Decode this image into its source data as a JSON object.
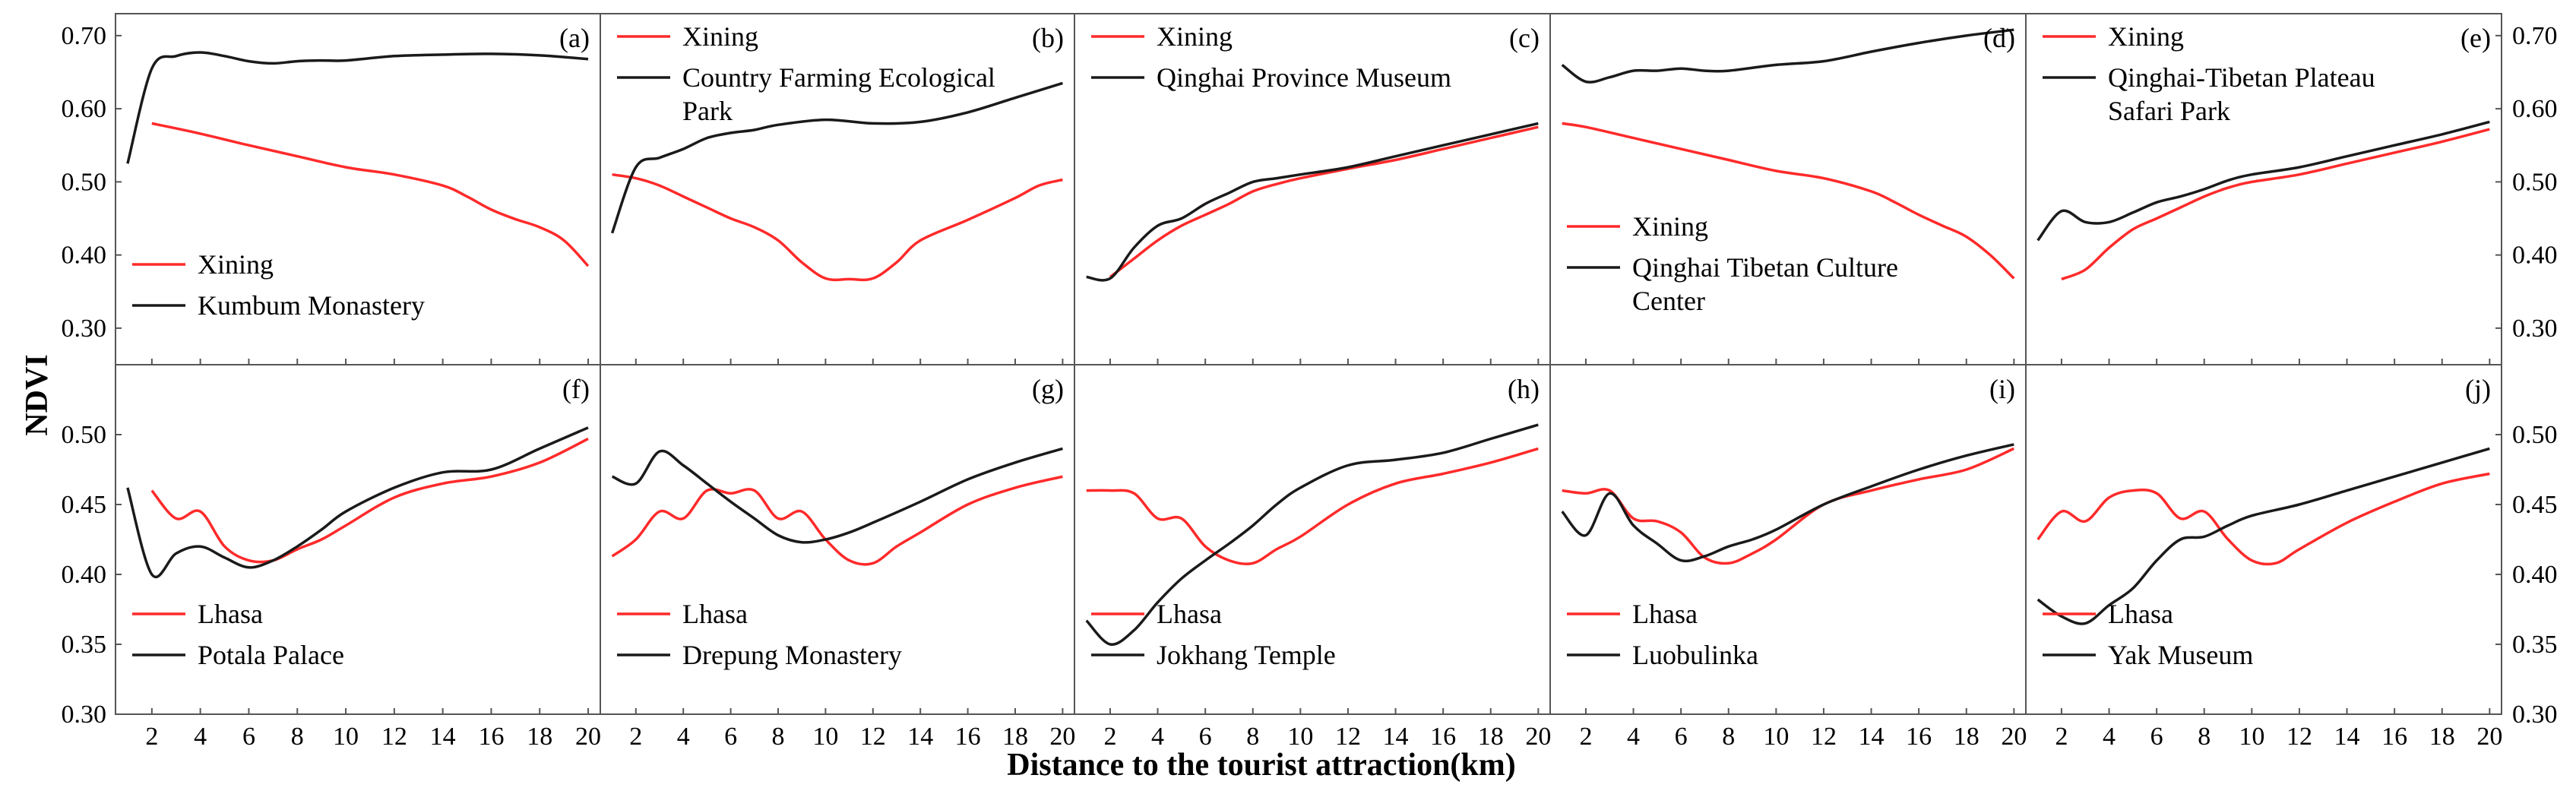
{
  "figure": {
    "ylabel": "NDVI",
    "xlabel": "Distance to the tourist attraction(km)",
    "x_ticks": [
      2,
      4,
      6,
      8,
      10,
      12,
      14,
      16,
      18,
      20
    ],
    "top_row_y_ticks": [
      "0.30",
      "0.40",
      "0.50",
      "0.60",
      "0.70"
    ],
    "bottom_row_y_ticks": [
      "0.30",
      "0.35",
      "0.40",
      "0.45",
      "0.50"
    ],
    "colors": {
      "city": "#ff2a2a",
      "attraction": "#1a1a1a"
    }
  },
  "chart_data": [
    {
      "type": "line",
      "label": "(a)",
      "row": 0,
      "legend_position": "bottom-left",
      "xlim": [
        0.5,
        20.5
      ],
      "ylim": [
        0.25,
        0.73
      ],
      "series": [
        {
          "name": "Xining",
          "color": "red",
          "x": [
            2,
            4,
            6,
            8,
            10,
            12,
            14,
            15,
            16,
            17,
            18,
            19,
            20
          ],
          "y": [
            0.58,
            0.566,
            0.55,
            0.535,
            0.52,
            0.51,
            0.495,
            0.48,
            0.462,
            0.449,
            0.438,
            0.42,
            0.385
          ]
        },
        {
          "name": "Kumbum Monastery",
          "color": "black",
          "x": [
            1,
            2,
            3,
            4,
            5,
            6,
            7,
            8,
            9,
            10,
            12,
            14,
            16,
            18,
            20
          ],
          "y": [
            0.525,
            0.655,
            0.672,
            0.677,
            0.672,
            0.665,
            0.662,
            0.665,
            0.666,
            0.666,
            0.672,
            0.674,
            0.675,
            0.673,
            0.668
          ]
        }
      ]
    },
    {
      "type": "line",
      "label": "(b)",
      "row": 0,
      "legend_position": "top-left",
      "xlim": [
        0.5,
        20.5
      ],
      "ylim": [
        0.25,
        0.73
      ],
      "series": [
        {
          "name": "Xining",
          "color": "red",
          "x": [
            1,
            2,
            3,
            4,
            5,
            6,
            7,
            8,
            9,
            10,
            11,
            12,
            13,
            14,
            16,
            18,
            19,
            20
          ],
          "y": [
            0.51,
            0.505,
            0.495,
            0.48,
            0.465,
            0.45,
            0.438,
            0.42,
            0.39,
            0.368,
            0.367,
            0.368,
            0.39,
            0.42,
            0.448,
            0.478,
            0.495,
            0.503
          ]
        },
        {
          "name": "Country Farming Ecological Park",
          "color": "black",
          "x": [
            1,
            2,
            3,
            4,
            5,
            6,
            7,
            8,
            10,
            12,
            14,
            16,
            18,
            20
          ],
          "y": [
            0.43,
            0.52,
            0.533,
            0.545,
            0.56,
            0.567,
            0.571,
            0.578,
            0.585,
            0.58,
            0.582,
            0.595,
            0.615,
            0.635
          ]
        }
      ]
    },
    {
      "type": "line",
      "label": "(c)",
      "row": 0,
      "legend_position": "top-left",
      "xlim": [
        0.5,
        20.5
      ],
      "ylim": [
        0.25,
        0.73
      ],
      "series": [
        {
          "name": "Xining",
          "color": "red",
          "x": [
            2,
            3,
            4,
            5,
            6,
            7,
            8,
            9,
            10,
            12,
            14,
            16,
            18,
            20
          ],
          "y": [
            0.37,
            0.395,
            0.42,
            0.44,
            0.455,
            0.47,
            0.487,
            0.497,
            0.505,
            0.518,
            0.53,
            0.545,
            0.56,
            0.575
          ]
        },
        {
          "name": "Qinghai Province Museum",
          "color": "black",
          "x": [
            1,
            2,
            3,
            4,
            5,
            6,
            7,
            8,
            9,
            10,
            12,
            14,
            16,
            18,
            20
          ],
          "y": [
            0.37,
            0.368,
            0.41,
            0.44,
            0.45,
            0.47,
            0.485,
            0.5,
            0.505,
            0.51,
            0.52,
            0.535,
            0.55,
            0.565,
            0.58
          ]
        }
      ]
    },
    {
      "type": "line",
      "label": "(d)",
      "row": 0,
      "legend_position": "bottom-left",
      "xlim": [
        0.5,
        20.5
      ],
      "ylim": [
        0.25,
        0.73
      ],
      "series": [
        {
          "name": "Xining",
          "color": "red",
          "x": [
            1,
            2,
            4,
            6,
            8,
            10,
            12,
            14,
            15,
            16,
            17,
            18,
            19,
            20
          ],
          "y": [
            0.58,
            0.575,
            0.56,
            0.545,
            0.53,
            0.515,
            0.505,
            0.487,
            0.472,
            0.455,
            0.44,
            0.425,
            0.4,
            0.368
          ]
        },
        {
          "name": "Qinghai Tibetan Culture Center",
          "color": "black",
          "x": [
            1,
            2,
            3,
            4,
            5,
            6,
            7,
            8,
            10,
            12,
            14,
            16,
            18,
            20
          ],
          "y": [
            0.66,
            0.637,
            0.643,
            0.652,
            0.652,
            0.655,
            0.652,
            0.652,
            0.66,
            0.665,
            0.678,
            0.69,
            0.7,
            0.708
          ]
        }
      ]
    },
    {
      "type": "line",
      "label": "(e)",
      "row": 0,
      "legend_position": "top-left",
      "xlim": [
        0.5,
        20.5
      ],
      "ylim": [
        0.25,
        0.73
      ],
      "series": [
        {
          "name": "Xining",
          "color": "red",
          "x": [
            2,
            3,
            4,
            5,
            6,
            7,
            8,
            9,
            10,
            12,
            14,
            16,
            18,
            20
          ],
          "y": [
            0.367,
            0.38,
            0.41,
            0.435,
            0.45,
            0.465,
            0.48,
            0.492,
            0.5,
            0.51,
            0.525,
            0.54,
            0.555,
            0.572
          ]
        },
        {
          "name": "Qinghai-Tibetan Plateau Safari Park",
          "color": "black",
          "x": [
            1,
            2,
            3,
            4,
            5,
            6,
            7,
            8,
            9,
            10,
            12,
            14,
            16,
            18,
            20
          ],
          "y": [
            0.42,
            0.46,
            0.445,
            0.445,
            0.458,
            0.472,
            0.48,
            0.49,
            0.502,
            0.51,
            0.52,
            0.535,
            0.55,
            0.565,
            0.582
          ]
        }
      ]
    },
    {
      "type": "line",
      "label": "(f)",
      "row": 1,
      "legend_position": "bottom-left",
      "xlim": [
        0.5,
        20.5
      ],
      "ylim": [
        0.3,
        0.55
      ],
      "series": [
        {
          "name": "Lhasa",
          "color": "red",
          "x": [
            2,
            3,
            4,
            5,
            6,
            7,
            8,
            9,
            10,
            12,
            14,
            16,
            18,
            20
          ],
          "y": [
            0.46,
            0.44,
            0.445,
            0.42,
            0.41,
            0.41,
            0.418,
            0.425,
            0.435,
            0.455,
            0.465,
            0.47,
            0.48,
            0.497
          ]
        },
        {
          "name": "Potala Palace",
          "color": "black",
          "x": [
            1,
            2,
            3,
            4,
            5,
            6,
            7,
            8,
            9,
            10,
            12,
            14,
            16,
            18,
            20
          ],
          "y": [
            0.462,
            0.4,
            0.415,
            0.42,
            0.412,
            0.405,
            0.41,
            0.42,
            0.432,
            0.445,
            0.462,
            0.473,
            0.475,
            0.49,
            0.505
          ]
        }
      ]
    },
    {
      "type": "line",
      "label": "(g)",
      "row": 1,
      "legend_position": "bottom-left",
      "xlim": [
        0.5,
        20.5
      ],
      "ylim": [
        0.3,
        0.55
      ],
      "series": [
        {
          "name": "Lhasa",
          "color": "red",
          "x": [
            1,
            2,
            3,
            4,
            5,
            6,
            7,
            8,
            9,
            10,
            11,
            12,
            13,
            14,
            16,
            18,
            20
          ],
          "y": [
            0.413,
            0.425,
            0.445,
            0.44,
            0.46,
            0.458,
            0.46,
            0.44,
            0.445,
            0.425,
            0.41,
            0.408,
            0.42,
            0.43,
            0.45,
            0.462,
            0.47
          ]
        },
        {
          "name": "Drepung Monastery",
          "color": "black",
          "x": [
            1,
            2,
            3,
            4,
            5,
            6,
            7,
            8,
            9,
            10,
            11,
            12,
            14,
            16,
            18,
            20
          ],
          "y": [
            0.47,
            0.465,
            0.488,
            0.478,
            0.465,
            0.452,
            0.44,
            0.428,
            0.423,
            0.425,
            0.43,
            0.437,
            0.452,
            0.468,
            0.48,
            0.49
          ]
        }
      ]
    },
    {
      "type": "line",
      "label": "(h)",
      "row": 1,
      "legend_position": "bottom-left",
      "xlim": [
        0.5,
        20.5
      ],
      "ylim": [
        0.3,
        0.55
      ],
      "series": [
        {
          "name": "Lhasa",
          "color": "red",
          "x": [
            1,
            2,
            3,
            4,
            5,
            6,
            7,
            8,
            9,
            10,
            12,
            14,
            16,
            18,
            20
          ],
          "y": [
            0.46,
            0.46,
            0.458,
            0.44,
            0.44,
            0.42,
            0.41,
            0.408,
            0.418,
            0.427,
            0.45,
            0.465,
            0.472,
            0.48,
            0.49
          ]
        },
        {
          "name": "Jokhang Temple",
          "color": "black",
          "x": [
            1,
            2,
            3,
            4,
            5,
            6,
            7,
            8,
            9,
            10,
            12,
            14,
            16,
            18,
            20
          ],
          "y": [
            0.367,
            0.35,
            0.36,
            0.38,
            0.397,
            0.41,
            0.422,
            0.435,
            0.45,
            0.462,
            0.478,
            0.482,
            0.487,
            0.497,
            0.507
          ]
        }
      ]
    },
    {
      "type": "line",
      "label": "(i)",
      "row": 1,
      "legend_position": "bottom-left",
      "xlim": [
        0.5,
        20.5
      ],
      "ylim": [
        0.3,
        0.55
      ],
      "series": [
        {
          "name": "Lhasa",
          "color": "red",
          "x": [
            1,
            2,
            3,
            4,
            5,
            6,
            7,
            8,
            9,
            10,
            12,
            14,
            16,
            18,
            20
          ],
          "y": [
            0.46,
            0.458,
            0.46,
            0.44,
            0.438,
            0.43,
            0.412,
            0.408,
            0.415,
            0.425,
            0.45,
            0.46,
            0.468,
            0.475,
            0.49
          ]
        },
        {
          "name": "Luobulinka",
          "color": "black",
          "x": [
            1,
            2,
            3,
            4,
            5,
            6,
            7,
            8,
            9,
            10,
            12,
            14,
            16,
            18,
            20
          ],
          "y": [
            0.445,
            0.428,
            0.458,
            0.435,
            0.422,
            0.41,
            0.413,
            0.42,
            0.425,
            0.432,
            0.45,
            0.463,
            0.475,
            0.485,
            0.493
          ]
        }
      ]
    },
    {
      "type": "line",
      "label": "(j)",
      "row": 1,
      "legend_position": "bottom-left",
      "xlim": [
        0.5,
        20.5
      ],
      "ylim": [
        0.3,
        0.55
      ],
      "series": [
        {
          "name": "Lhasa",
          "color": "red",
          "x": [
            1,
            2,
            3,
            4,
            5,
            6,
            7,
            8,
            9,
            10,
            11,
            12,
            14,
            16,
            18,
            20
          ],
          "y": [
            0.425,
            0.445,
            0.438,
            0.455,
            0.46,
            0.458,
            0.44,
            0.445,
            0.425,
            0.41,
            0.408,
            0.418,
            0.437,
            0.452,
            0.465,
            0.472
          ]
        },
        {
          "name": "Yak Museum",
          "color": "black",
          "x": [
            1,
            2,
            3,
            4,
            5,
            6,
            7,
            8,
            9,
            10,
            12,
            14,
            16,
            18,
            20
          ],
          "y": [
            0.382,
            0.37,
            0.365,
            0.378,
            0.39,
            0.41,
            0.425,
            0.427,
            0.435,
            0.442,
            0.45,
            0.46,
            0.47,
            0.48,
            0.49
          ]
        }
      ]
    }
  ]
}
